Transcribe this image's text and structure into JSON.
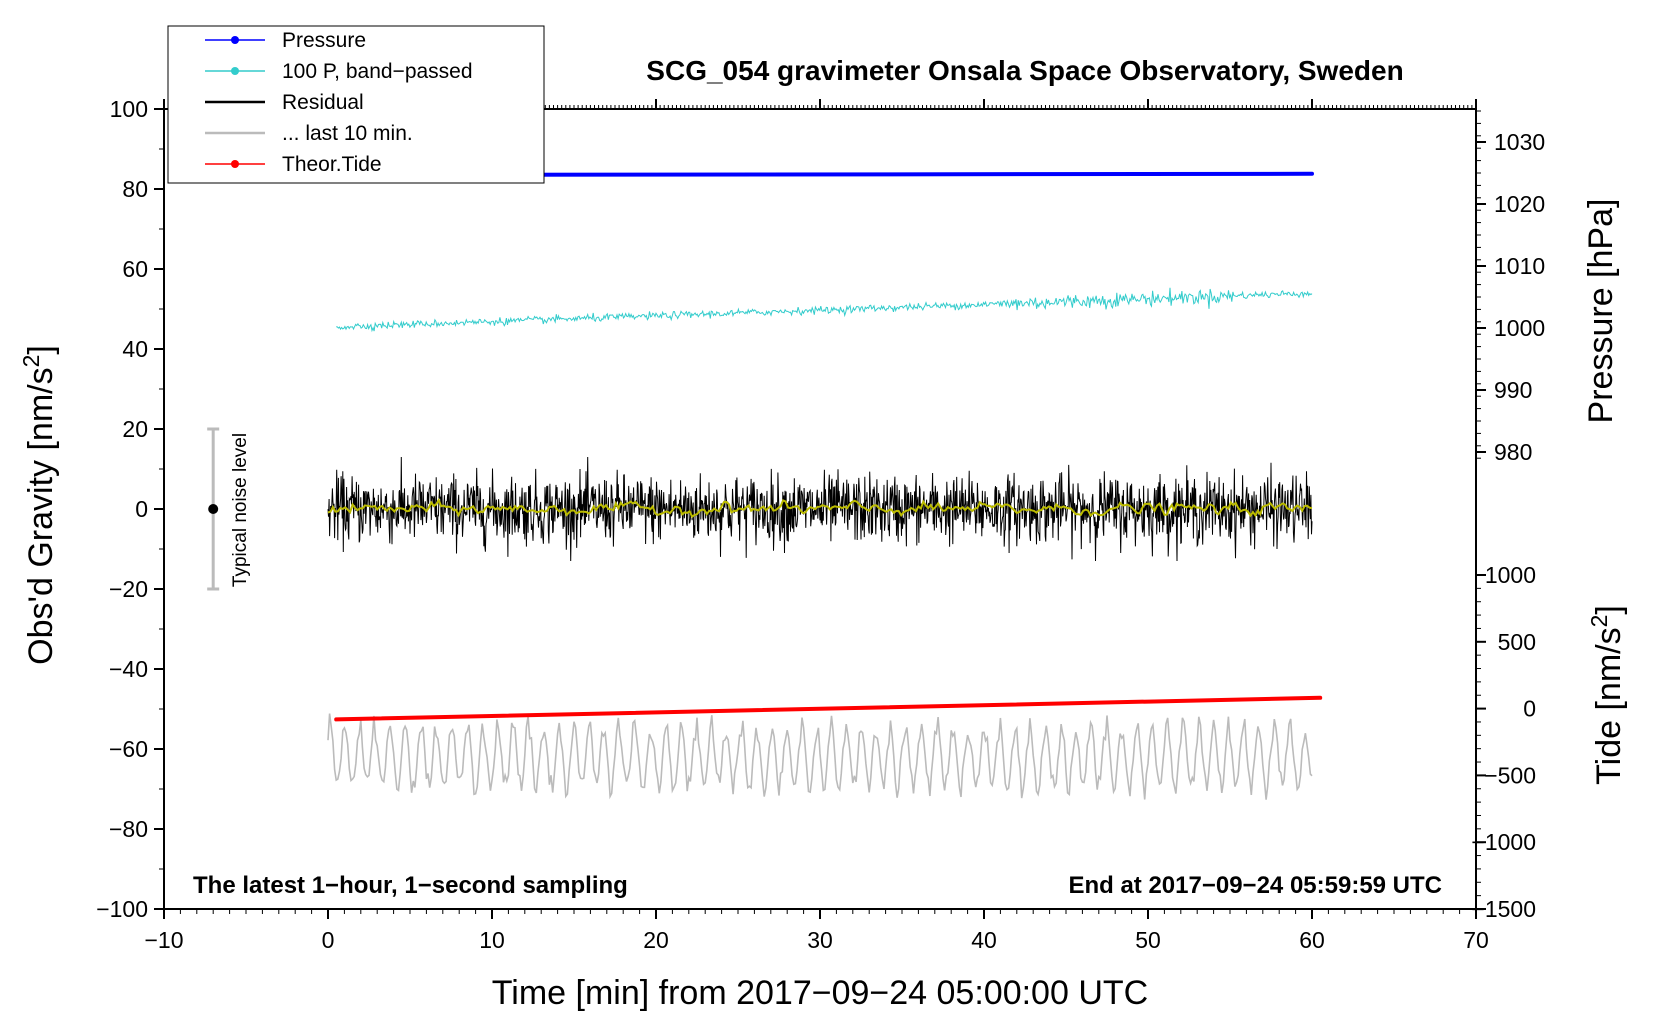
{
  "chart_data": {
    "type": "line",
    "title": "SCG_054 gravimeter Onsala Space Observatory, Sweden",
    "xlabel": "Time [min] from 2017−09−24 05:00:00 UTC",
    "ylabel_left": "Obs'd Gravity [nm/s",
    "ylabel_left_sup": "2",
    "ylabel_left_end": "]",
    "ylabel_right_pressure": "Pressure [hPa]",
    "ylabel_right_tide": "Tide [nm/s",
    "ylabel_right_tide_sup": "2",
    "ylabel_right_tide_end": "]",
    "xlim": [
      -10,
      70
    ],
    "ylim_left": [
      -100,
      100
    ],
    "x_ticks": [
      -10,
      0,
      10,
      20,
      30,
      40,
      50,
      60,
      70
    ],
    "x_tick_labels": [
      "−10",
      "0",
      "10",
      "20",
      "30",
      "40",
      "50",
      "60",
      "70"
    ],
    "y_left_ticks": [
      100,
      80,
      60,
      40,
      20,
      0,
      -20,
      -40,
      -60,
      -80,
      -100
    ],
    "y_left_tick_labels": [
      "100",
      "80",
      "60",
      "40",
      "20",
      "0",
      "−20",
      "−40",
      "−60",
      "−80",
      "−100"
    ],
    "pressure_ticks": [
      1030,
      1020,
      1010,
      1000,
      990,
      980
    ],
    "pressure_tick_labels": [
      "1030",
      "1020",
      "1010",
      "1000",
      "990",
      "980"
    ],
    "tide_ticks": [
      1000,
      500,
      0,
      -500,
      -1000,
      -1500
    ],
    "tide_tick_labels": [
      "1000",
      "500",
      "0",
      "−500",
      "−1000",
      "−1500"
    ],
    "annotation_left": "The latest 1−hour, 1−second sampling",
    "annotation_right": "End at 2017−09−24 05:59:59 UTC",
    "noise_label": "Typical noise level",
    "noise_bar": {
      "x": -7,
      "center": 0,
      "low": -20,
      "high": 20
    },
    "legend": [
      {
        "label": "Pressure",
        "color": "#0000ff",
        "marker": true
      },
      {
        "label": "100 P, band−passed",
        "color": "#33cccc",
        "marker": true
      },
      {
        "label": "Residual",
        "color": "#000000",
        "marker": false
      },
      {
        "label": "... last 10 min.",
        "color": "#bbbbbb",
        "marker": false
      },
      {
        "label": "Theor.Tide",
        "color": "#ff0000",
        "marker": true
      }
    ],
    "series": [
      {
        "name": "Pressure",
        "color": "#0000ff",
        "x_range": [
          0,
          60
        ],
        "y_start": 83.5,
        "y_end": 83.8
      },
      {
        "name": "100 P, band−passed",
        "color": "#33cccc",
        "x_range": [
          0.5,
          60
        ],
        "y_start": 45.5,
        "y_end": 54.0
      },
      {
        "name": "Residual",
        "color": "#000000",
        "x_range": [
          0,
          60
        ],
        "y_center": 0,
        "amplitude": 13
      },
      {
        "name": "Residual smoothed",
        "color": "#bbbb00",
        "x_range": [
          0,
          60
        ],
        "y_center": 0
      },
      {
        "name": "... last 10 min.",
        "color": "#bbbbbb",
        "x_range": [
          0,
          60
        ],
        "y_center": -62,
        "amplitude": 11
      },
      {
        "name": "Theor.Tide",
        "color": "#ff0000",
        "x_range": [
          0.5,
          60.5
        ],
        "y_start": -52.6,
        "y_end": -47.2
      }
    ]
  }
}
